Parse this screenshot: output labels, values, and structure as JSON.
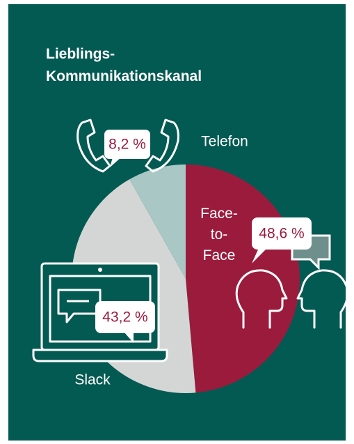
{
  "chart_data": {
    "type": "pie",
    "title": "Lieblings-Kommunikationskanal",
    "categories": [
      "Face-to-Face",
      "Slack",
      "Telefon"
    ],
    "values": [
      48.6,
      43.2,
      8.2
    ],
    "value_labels": [
      "48,6 %",
      "43,2 %",
      "8,2 %"
    ],
    "colors": [
      "#9b1b3c",
      "#d4d6d5",
      "#a9c7c5"
    ]
  }
}
